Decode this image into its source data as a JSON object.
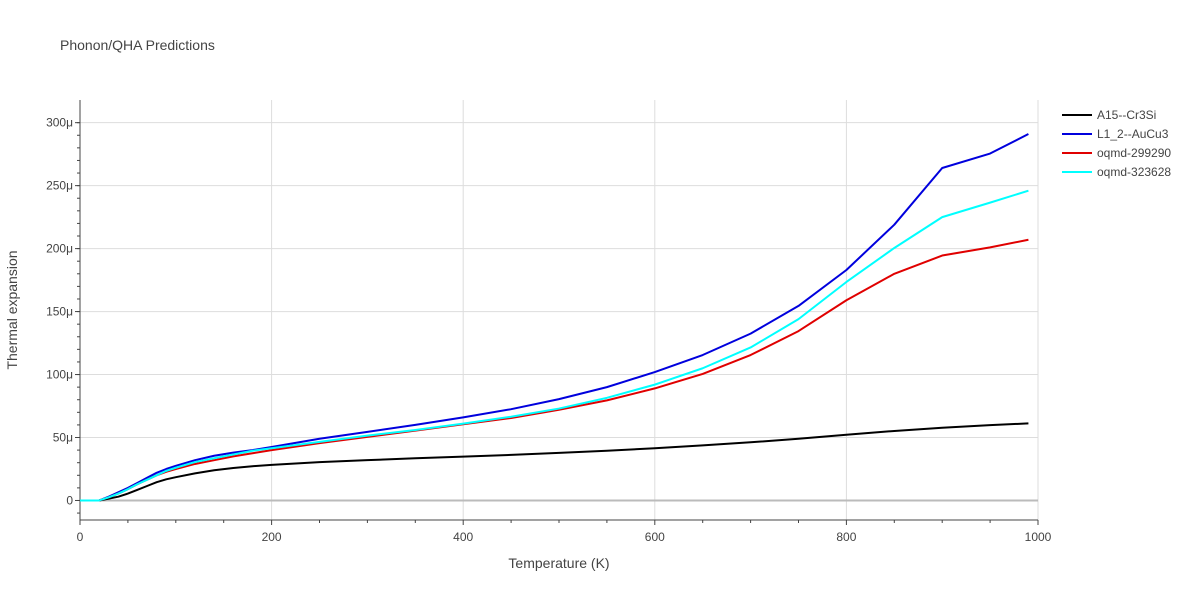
{
  "chart_data": {
    "type": "line",
    "title": "Phonon/QHA Predictions",
    "xlabel": "Temperature (K)",
    "ylabel": "Thermal expansion",
    "xlim": [
      0,
      1000
    ],
    "ylim": [
      -1.5e-05,
      0.000308
    ],
    "x_ticks": [
      {
        "value": 0,
        "label": "0"
      },
      {
        "value": 200,
        "label": "200"
      },
      {
        "value": 400,
        "label": "400"
      },
      {
        "value": 600,
        "label": "600"
      },
      {
        "value": 800,
        "label": "800"
      },
      {
        "value": 1000,
        "label": "1000"
      }
    ],
    "y_ticks": [
      {
        "value": 0,
        "label": "0"
      },
      {
        "value": 5e-05,
        "label": "50μ"
      },
      {
        "value": 0.0001,
        "label": "100μ"
      },
      {
        "value": 0.00015,
        "label": "150μ"
      },
      {
        "value": 0.0002,
        "label": "200μ"
      },
      {
        "value": 0.00025,
        "label": "250μ"
      },
      {
        "value": 0.0003,
        "label": "300μ"
      }
    ],
    "grid": true,
    "legend_position": "top-right",
    "x": [
      0,
      10,
      20,
      30,
      40,
      50,
      60,
      70,
      80,
      90,
      100,
      120,
      140,
      160,
      180,
      200,
      250,
      300,
      350,
      400,
      450,
      500,
      550,
      600,
      650,
      700,
      750,
      800,
      850,
      900,
      950,
      990
    ],
    "series": [
      {
        "name": "A15--Cr3Si",
        "color": "#000000",
        "values": [
          0,
          0,
          0,
          1.5e-06,
          3e-06,
          5.5e-06,
          8.5e-06,
          1.15e-05,
          1.45e-05,
          1.68e-05,
          1.85e-05,
          2.15e-05,
          2.4e-05,
          2.58e-05,
          2.72e-05,
          2.83e-05,
          3.05e-05,
          3.2e-05,
          3.35e-05,
          3.48e-05,
          3.62e-05,
          3.78e-05,
          3.95e-05,
          4.15e-05,
          4.38e-05,
          4.62e-05,
          4.9e-05,
          5.22e-05,
          5.52e-05,
          5.78e-05,
          5.98e-05,
          6.12e-05
        ]
      },
      {
        "name": "L1_2--AuCu3",
        "color": "#0000dd",
        "values": [
          0,
          0,
          0,
          3e-06,
          6.5e-06,
          1e-05,
          1.4e-05,
          1.8e-05,
          2.2e-05,
          2.5e-05,
          2.75e-05,
          3.2e-05,
          3.55e-05,
          3.8e-05,
          4e-05,
          4.25e-05,
          4.9e-05,
          5.45e-05,
          6e-05,
          6.6e-05,
          7.25e-05,
          8.05e-05,
          9e-05,
          0.000102,
          0.0001155,
          0.0001325,
          0.0001545,
          0.000183,
          0.000219,
          0.000264,
          0.0002755,
          0.000291
        ]
      },
      {
        "name": "oqmd-299290",
        "color": "#e00000",
        "values": [
          0,
          0,
          0,
          2.5e-06,
          5.5e-06,
          9e-06,
          1.3e-05,
          1.65e-05,
          2e-05,
          2.28e-05,
          2.5e-05,
          2.9e-05,
          3.2e-05,
          3.5e-05,
          3.75e-05,
          4e-05,
          4.55e-05,
          5.05e-05,
          5.55e-05,
          6.05e-05,
          6.55e-05,
          7.2e-05,
          7.95e-05,
          8.9e-05,
          0.0001005,
          0.0001155,
          0.0001345,
          0.000159,
          0.00018,
          0.0001945,
          0.000201,
          0.000207
        ]
      },
      {
        "name": "oqmd-323628",
        "color": "#00ffff",
        "values": [
          0,
          0,
          0,
          2.5e-06,
          5.5e-06,
          9e-06,
          1.3e-05,
          1.65e-05,
          2e-05,
          2.35e-05,
          2.6e-05,
          3.05e-05,
          3.35e-05,
          3.65e-05,
          3.95e-05,
          4.15e-05,
          4.65e-05,
          5.15e-05,
          5.6e-05,
          6.1e-05,
          6.65e-05,
          7.3e-05,
          8.15e-05,
          9.2e-05,
          0.000105,
          0.0001215,
          0.000144,
          0.0001735,
          0.0002005,
          0.000225,
          0.0002365,
          0.000246
        ]
      }
    ]
  }
}
